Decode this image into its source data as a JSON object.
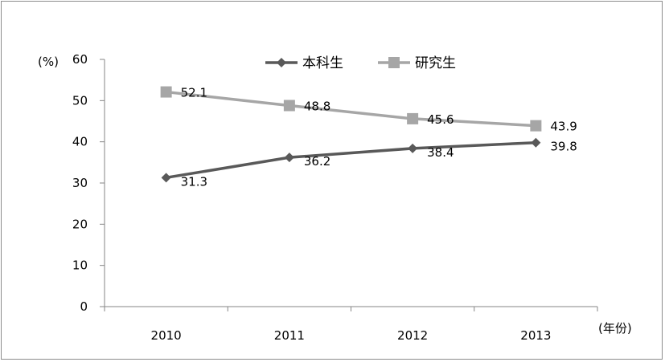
{
  "chart_data": {
    "type": "line",
    "title": "",
    "xlabel": "(年份)",
    "ylabel": "(%)",
    "categories": [
      "2010",
      "2011",
      "2012",
      "2013"
    ],
    "ylim": [
      0,
      60
    ],
    "yticks": [
      0,
      10,
      20,
      30,
      40,
      50,
      60
    ],
    "grid": false,
    "legend_position": "top",
    "series": [
      {
        "name": "本科生",
        "values": [
          31.3,
          36.2,
          38.4,
          39.8
        ],
        "labels": [
          "31.3",
          "36.2",
          "38.4",
          "39.8"
        ],
        "color": "#595959",
        "marker": "diamond"
      },
      {
        "name": "研究生",
        "values": [
          52.1,
          48.8,
          45.6,
          43.9
        ],
        "labels": [
          "52.1",
          "48.8",
          "45.6",
          "43.9"
        ],
        "color": "#a6a6a6",
        "marker": "square"
      }
    ]
  }
}
